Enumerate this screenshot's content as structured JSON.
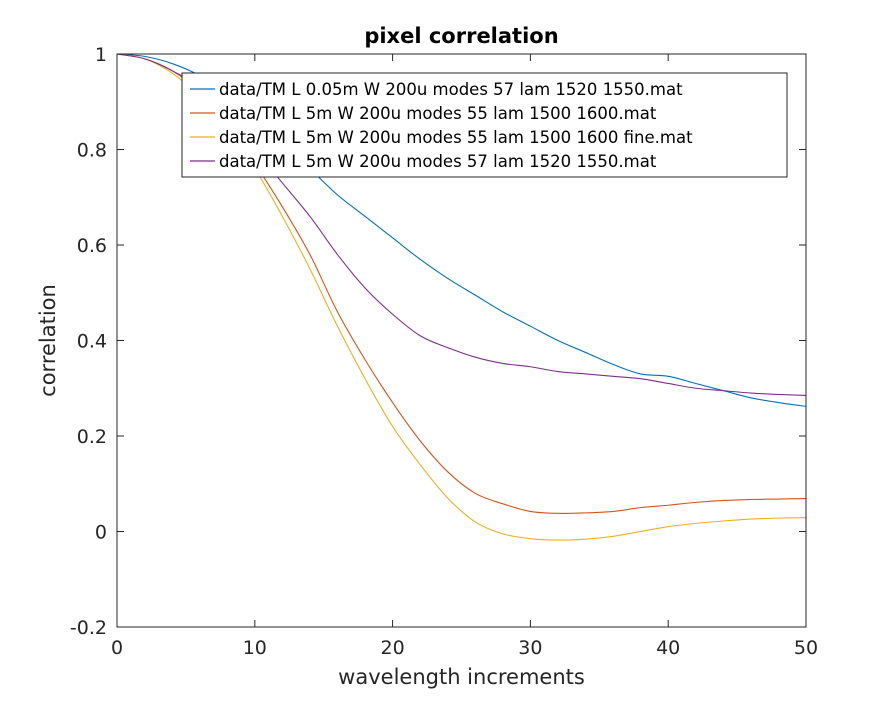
{
  "chart_data": {
    "type": "line",
    "title": "pixel correlation",
    "xlabel": "wavelength increments",
    "ylabel": "correlation",
    "xlim": [
      0,
      50
    ],
    "ylim": [
      -0.2,
      1
    ],
    "xticks": [
      0,
      10,
      20,
      30,
      40,
      50
    ],
    "xtick_labels": [
      "0",
      "10",
      "20",
      "30",
      "40",
      "50"
    ],
    "yticks": [
      -0.2,
      0,
      0.2,
      0.4,
      0.6,
      0.8,
      1
    ],
    "ytick_labels": [
      "-0.2",
      "0",
      "0.2",
      "0.4",
      "0.6",
      "0.8",
      "1"
    ],
    "grid": false,
    "legend_position": "top-right",
    "x": [
      0,
      2,
      4,
      6,
      8,
      10,
      12,
      14,
      16,
      18,
      20,
      22,
      24,
      26,
      28,
      30,
      32,
      34,
      36,
      38,
      40,
      42,
      44,
      46,
      48,
      50
    ],
    "series": [
      {
        "name": "data/TM L 0.05m W 200u modes 57 lam 1520 1550.mat",
        "color": "#0072BD",
        "values": [
          1.0,
          0.995,
          0.98,
          0.955,
          0.92,
          0.87,
          0.815,
          0.76,
          0.705,
          0.66,
          0.615,
          0.57,
          0.53,
          0.495,
          0.46,
          0.43,
          0.4,
          0.375,
          0.35,
          0.33,
          0.325,
          0.31,
          0.295,
          0.28,
          0.27,
          0.262
        ]
      },
      {
        "name": "data/TM L 5m W 200u modes 55 lam 1500 1600.mat",
        "color": "#D95319",
        "values": [
          1.0,
          0.99,
          0.965,
          0.92,
          0.85,
          0.77,
          0.68,
          0.58,
          0.46,
          0.36,
          0.27,
          0.19,
          0.125,
          0.08,
          0.058,
          0.042,
          0.038,
          0.039,
          0.042,
          0.05,
          0.055,
          0.061,
          0.065,
          0.067,
          0.068,
          0.069
        ]
      },
      {
        "name": "data/TM L 5m W 200u modes 55 lam 1500 1600 fine.mat",
        "color": "#EDB120",
        "values": [
          1.0,
          0.99,
          0.96,
          0.91,
          0.84,
          0.76,
          0.66,
          0.55,
          0.43,
          0.32,
          0.22,
          0.14,
          0.07,
          0.02,
          -0.005,
          -0.015,
          -0.018,
          -0.016,
          -0.01,
          0.0,
          0.01,
          0.017,
          0.022,
          0.026,
          0.028,
          0.029
        ]
      },
      {
        "name": "data/TM L 5m W 200u modes 57 lam 1520 1550.mat",
        "color": "#7E2F8E",
        "values": [
          1.0,
          0.99,
          0.965,
          0.93,
          0.87,
          0.8,
          0.73,
          0.66,
          0.58,
          0.51,
          0.455,
          0.41,
          0.385,
          0.365,
          0.352,
          0.345,
          0.335,
          0.33,
          0.325,
          0.32,
          0.31,
          0.3,
          0.295,
          0.29,
          0.287,
          0.285
        ]
      }
    ]
  }
}
